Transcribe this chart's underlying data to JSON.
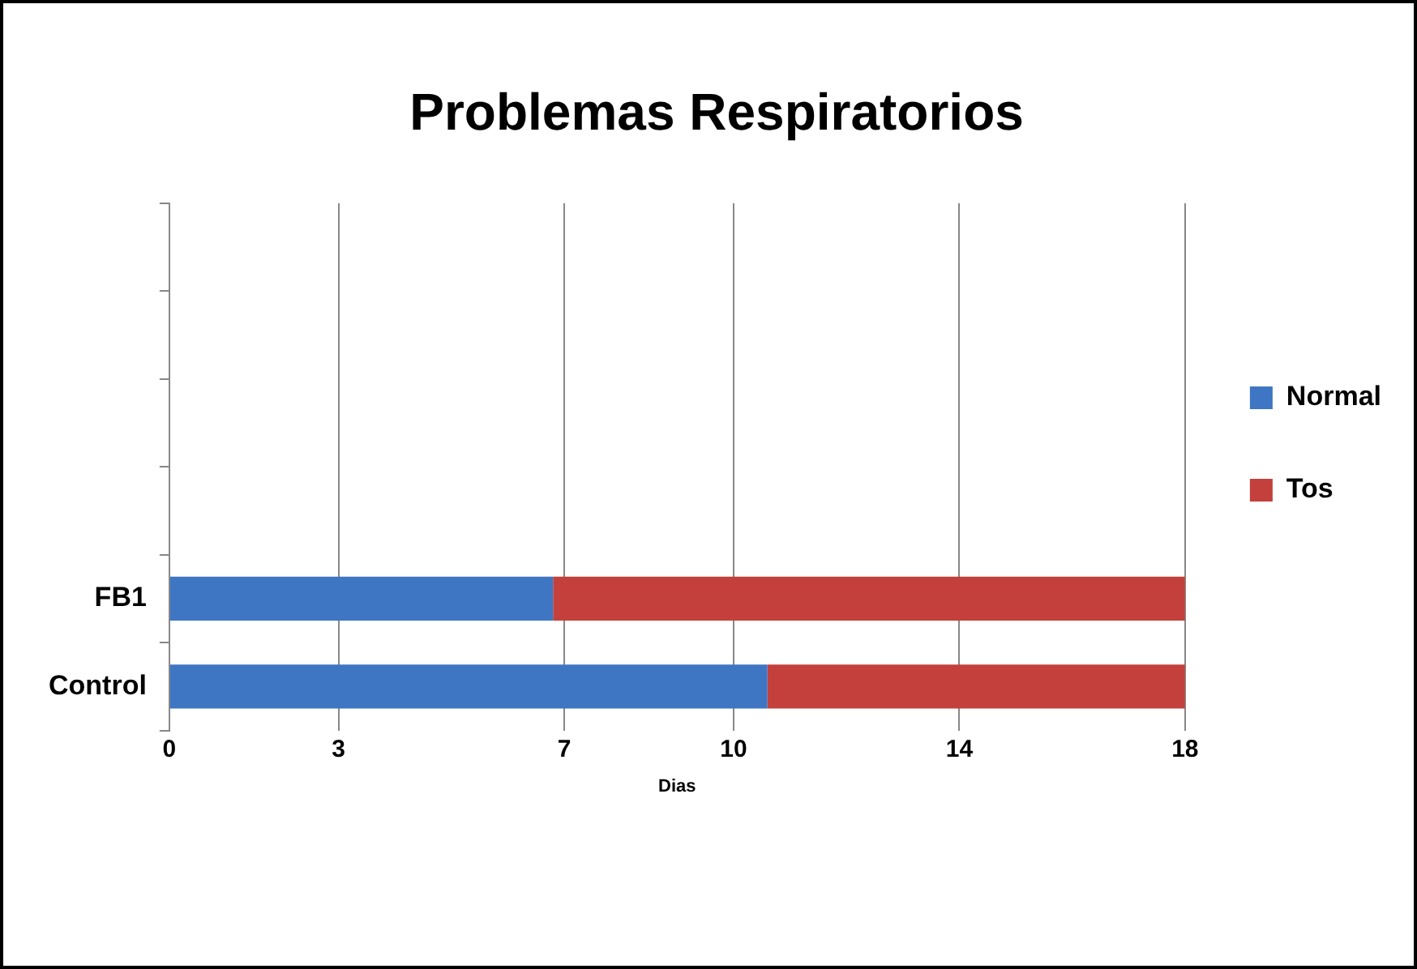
{
  "chart_data": {
    "type": "bar",
    "title": "Problemas Respiratorios",
    "xlabel": "Dias",
    "orientation": "horizontal",
    "stacked": true,
    "categories": [
      null,
      null,
      null,
      null,
      "FB1",
      "Control"
    ],
    "series": [
      {
        "name": "Normal",
        "color": "#3f76c3",
        "values": [
          null,
          null,
          null,
          null,
          6.8,
          10.6
        ]
      },
      {
        "name": "Tos",
        "color": "#c4403c",
        "values": [
          null,
          null,
          null,
          null,
          11.2,
          7.4
        ]
      }
    ],
    "xlim": [
      0,
      18
    ],
    "xticks": [
      0,
      3,
      7,
      10,
      14,
      18
    ],
    "grid": "x",
    "legend": "right"
  }
}
